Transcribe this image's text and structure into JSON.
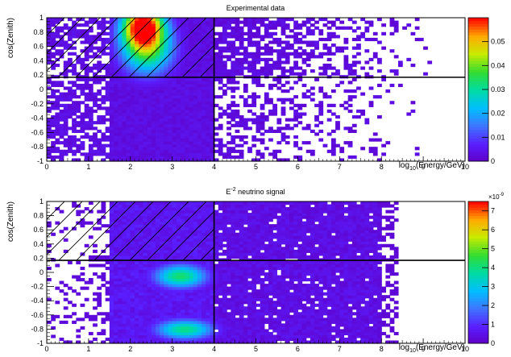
{
  "chart_data": [
    {
      "type": "heatmap",
      "title": "Experimental data",
      "xlabel_main": "log",
      "xlabel_sub": "10",
      "xlabel_rest": "(Energy/GeV)",
      "ylabel": "cos(Zenith)",
      "xlim": [
        0,
        10
      ],
      "ylim": [
        -1,
        1
      ],
      "x_ticks": [
        "0",
        "1",
        "2",
        "3",
        "4",
        "5",
        "6",
        "7",
        "8",
        "9",
        "10"
      ],
      "y_ticks": [
        "-1",
        "-0.8",
        "-0.6",
        "-0.4",
        "-0.2",
        "0",
        "0.2",
        "0.4",
        "0.6",
        "0.8",
        "1"
      ],
      "colorbar": {
        "range": [
          0,
          0.06
        ],
        "ticks": [
          "0",
          "0.01",
          "0.02",
          "0.03",
          "0.04",
          "0.05"
        ],
        "multiplier": ""
      },
      "cuts": {
        "energy_cut": 4,
        "cos_zenith_cut": 0.17
      },
      "hatched_region": {
        "x": [
          0,
          4
        ],
        "y": [
          0.17,
          1
        ]
      },
      "hotspots": [
        {
          "x": 2.3,
          "y": 0.9,
          "sx": 0.35,
          "sy": 0.2,
          "value": 0.06
        },
        {
          "x": 2.4,
          "y": 0.55,
          "sx": 0.45,
          "sy": 0.25,
          "value": 0.035
        }
      ]
    },
    {
      "type": "heatmap",
      "title_base": "E",
      "title_sup": "-2",
      "title_rest": " neutrino signal",
      "xlabel_main": "log",
      "xlabel_sub": "10",
      "xlabel_rest": "(Energy/GeV)",
      "ylabel": "cos(Zenith)",
      "xlim": [
        0,
        10
      ],
      "ylim": [
        -1,
        1
      ],
      "x_ticks": [
        "0",
        "1",
        "2",
        "3",
        "4",
        "5",
        "6",
        "7",
        "8",
        "9",
        "10"
      ],
      "y_ticks": [
        "-1",
        "-0.8",
        "-0.6",
        "-0.4",
        "-0.2",
        "0",
        "0.2",
        "0.4",
        "0.6",
        "0.8",
        "1"
      ],
      "colorbar": {
        "range": [
          0,
          7.5
        ],
        "ticks": [
          "0",
          "1",
          "2",
          "3",
          "4",
          "5",
          "6",
          "7"
        ],
        "multiplier_base": "×10",
        "multiplier_exp": "-9"
      },
      "cuts": {
        "energy_cut": 4,
        "cos_zenith_cut": 0.17
      },
      "hatched_region": {
        "x": [
          0,
          4
        ],
        "y": [
          0.17,
          1
        ]
      },
      "hotspots": [
        {
          "x": 3.2,
          "y": -0.05,
          "sx": 0.45,
          "sy": 0.12,
          "value": 4.2
        },
        {
          "x": 3.3,
          "y": -0.8,
          "sx": 0.5,
          "sy": 0.1,
          "value": 4.0
        }
      ]
    }
  ]
}
